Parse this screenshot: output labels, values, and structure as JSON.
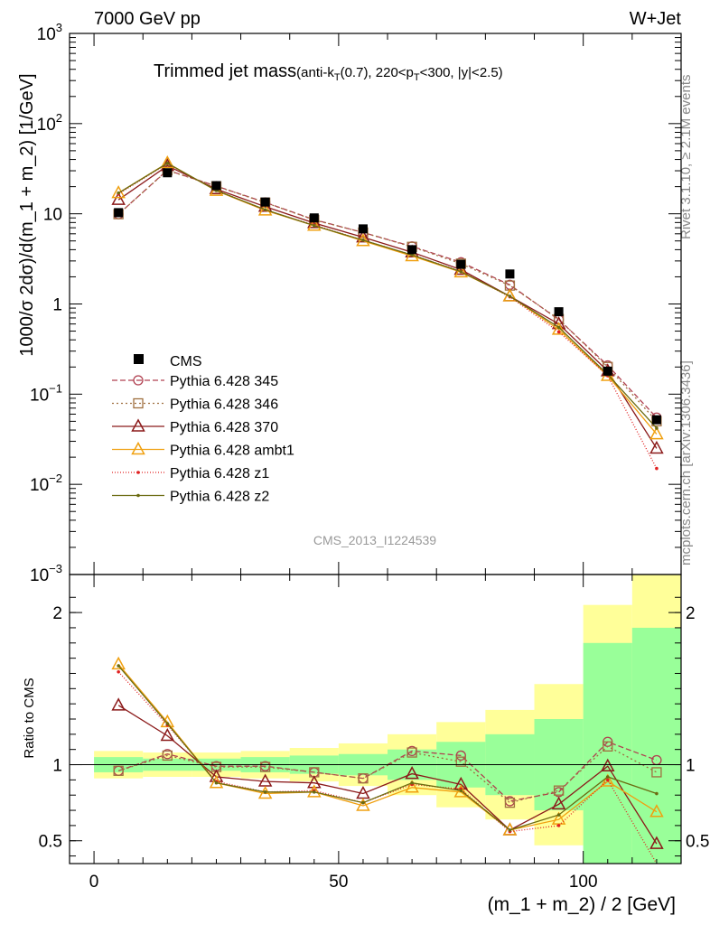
{
  "header": {
    "left": "7000 GeV pp",
    "right": "W+Jet"
  },
  "side_text": {
    "rivet": "Rivet 3.1.10, ≥ 2.1M events",
    "mcplots": "mcplots.cern.ch [arXiv:1306.3436]"
  },
  "watermark": "CMS_2013_I1224539",
  "chart_data": {
    "type": "line",
    "title": "Trimmed jet mass",
    "subtitle_parts": [
      "(anti-k",
      "T",
      "(0.7), 220<p",
      "T",
      "<300, |y|<2.5)"
    ],
    "xlabel": "(m_1 + m_2) / 2 [GeV]",
    "ylabel": "1000/σ 2dσ)/d(m_1 + m_2) [1/GeV]",
    "ratio_ylabel": "Ratio to CMS",
    "xlim": [
      -5,
      120
    ],
    "ylim": [
      0.001,
      1000
    ],
    "ratio_ylim": [
      0.35,
      2.25
    ],
    "log_y": true,
    "x_ticks": [
      0,
      50,
      100
    ],
    "y_ticks_main": [
      {
        "v": 1000,
        "l": "10",
        "e": "3"
      },
      {
        "v": 100,
        "l": "10",
        "e": "2"
      },
      {
        "v": 10,
        "l": "10",
        "e": ""
      },
      {
        "v": 1,
        "l": "1",
        "e": ""
      },
      {
        "v": 0.1,
        "l": "10",
        "e": "−1"
      },
      {
        "v": 0.01,
        "l": "10",
        "e": "−2"
      },
      {
        "v": 0.001,
        "l": "10",
        "e": "−3"
      }
    ],
    "ratio_ticks": [
      0.5,
      1,
      2
    ],
    "x": [
      5,
      15,
      25,
      35,
      45,
      55,
      65,
      75,
      85,
      95,
      105,
      115
    ],
    "bin_edges": [
      0,
      10,
      20,
      30,
      40,
      50,
      60,
      70,
      80,
      90,
      100,
      110,
      120
    ],
    "data": {
      "name": "CMS",
      "values": [
        10.3,
        28.5,
        20.5,
        13.5,
        9.0,
        6.8,
        4.0,
        2.75,
        2.15,
        0.82,
        0.18,
        0.052
      ]
    },
    "uncertainty_bands": {
      "green": [
        [
          0.95,
          1.05
        ],
        [
          0.96,
          1.04
        ],
        [
          0.96,
          1.04
        ],
        [
          0.95,
          1.05
        ],
        [
          0.94,
          1.06
        ],
        [
          0.93,
          1.07
        ],
        [
          0.9,
          1.1
        ],
        [
          0.85,
          1.15
        ],
        [
          0.8,
          1.2
        ],
        [
          0.7,
          1.3
        ],
        [
          0.2,
          1.8
        ],
        [
          0.1,
          1.9
        ]
      ],
      "yellow": [
        [
          0.91,
          1.09
        ],
        [
          0.92,
          1.08
        ],
        [
          0.92,
          1.08
        ],
        [
          0.91,
          1.09
        ],
        [
          0.89,
          1.11
        ],
        [
          0.86,
          1.14
        ],
        [
          0.8,
          1.2
        ],
        [
          0.72,
          1.28
        ],
        [
          0.64,
          1.36
        ],
        [
          0.47,
          1.53
        ],
        [
          0.05,
          2.05
        ],
        [
          0.05,
          2.5
        ]
      ]
    },
    "series": [
      {
        "name": "Pythia 6.428 345",
        "color": "#b04050",
        "dash": "6,3",
        "marker": "circle",
        "values": [
          9.9,
          30.5,
          20.3,
          13.4,
          8.6,
          6.2,
          4.35,
          2.9,
          1.63,
          0.67,
          0.208,
          0.055
        ]
      },
      {
        "name": "Pythia 6.428 346",
        "color": "#a07040",
        "dash": "2,3",
        "marker": "square",
        "values": [
          9.9,
          30.3,
          20.2,
          13.3,
          8.55,
          6.2,
          4.3,
          2.8,
          1.6,
          0.68,
          0.2,
          0.05
        ]
      },
      {
        "name": "Pythia 6.428 370",
        "color": "#8b1a1a",
        "dash": "",
        "marker": "triangle",
        "values": [
          14.3,
          34.0,
          18.8,
          12.0,
          7.9,
          5.5,
          3.75,
          2.4,
          1.22,
          0.6,
          0.18,
          0.025
        ]
      },
      {
        "name": "Pythia 6.428 ambt1",
        "color": "#f0a010",
        "dash": "",
        "marker": "triangle",
        "values": [
          17.0,
          36.5,
          18.0,
          10.9,
          7.4,
          5.0,
          3.4,
          2.25,
          1.22,
          0.52,
          0.16,
          0.036
        ]
      },
      {
        "name": "Pythia 6.428 z1",
        "color": "#e02020",
        "dash": "1,2",
        "marker": "dot",
        "values": [
          16.6,
          36.0,
          18.2,
          11.0,
          7.5,
          5.1,
          3.5,
          2.3,
          1.2,
          0.49,
          0.16,
          0.015
        ]
      },
      {
        "name": "Pythia 6.428 z2",
        "color": "#6b6b10",
        "dash": "",
        "marker": "dot",
        "values": [
          17.0,
          36.3,
          18.1,
          11.1,
          7.4,
          5.1,
          3.5,
          2.28,
          1.22,
          0.55,
          0.165,
          0.042
        ]
      }
    ],
    "ratio_series": [
      [
        0.96,
        1.07,
        0.99,
        0.99,
        0.95,
        0.91,
        1.09,
        1.06,
        0.76,
        0.82,
        1.15,
        1.03
      ],
      [
        0.96,
        1.06,
        0.985,
        0.985,
        0.95,
        0.91,
        1.08,
        1.02,
        0.75,
        0.83,
        1.12,
        0.95
      ],
      [
        1.39,
        1.19,
        0.92,
        0.89,
        0.88,
        0.81,
        0.94,
        0.87,
        0.57,
        0.74,
        0.99,
        0.48
      ],
      [
        1.66,
        1.28,
        0.88,
        0.81,
        0.82,
        0.73,
        0.85,
        0.82,
        0.57,
        0.64,
        0.89,
        0.69
      ],
      [
        1.61,
        1.26,
        0.89,
        0.82,
        0.83,
        0.75,
        0.87,
        0.84,
        0.56,
        0.6,
        0.9,
        0.29
      ],
      [
        1.65,
        1.27,
        0.88,
        0.82,
        0.82,
        0.75,
        0.88,
        0.83,
        0.57,
        0.67,
        0.92,
        0.81
      ]
    ]
  }
}
